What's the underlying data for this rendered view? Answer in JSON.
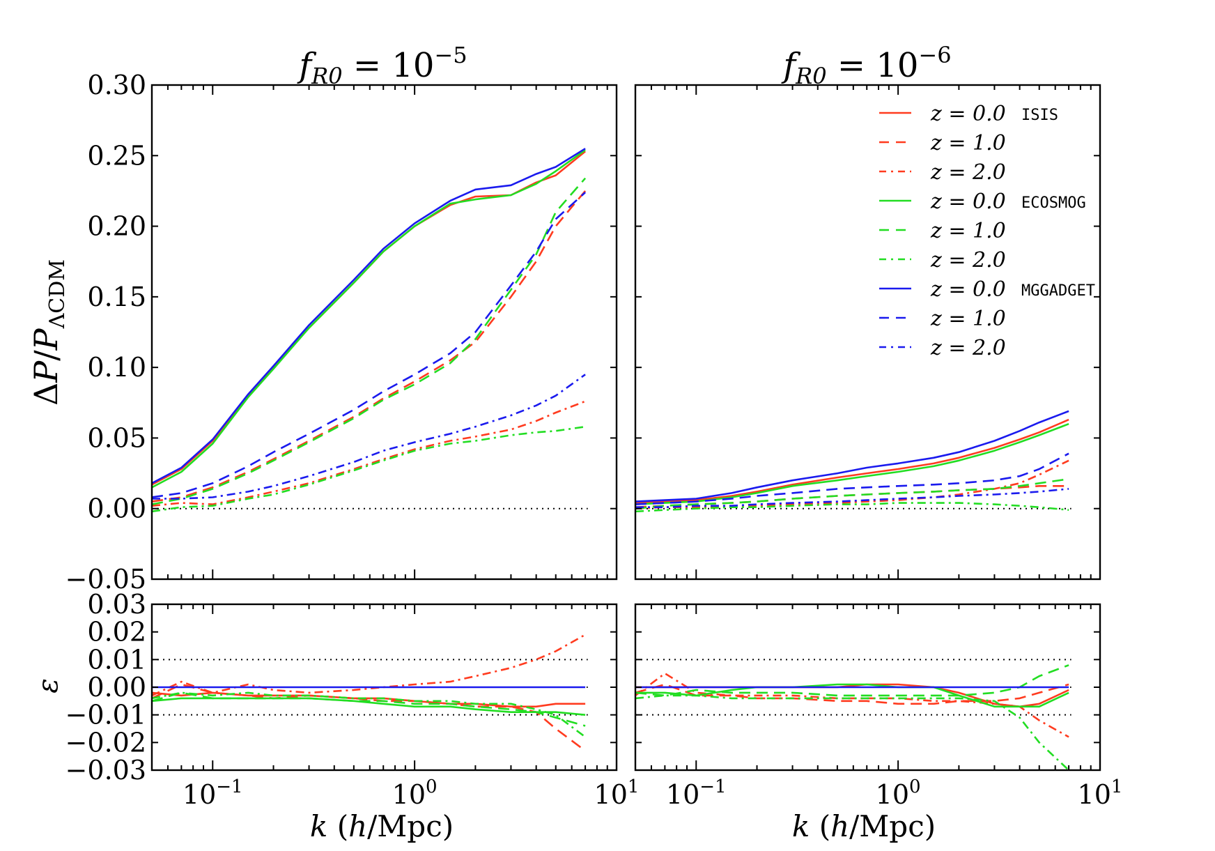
{
  "figure": {
    "ylabel_top": "ΔP/P_ΛCDM",
    "ylabel_bottom": "ε",
    "xlabel": "k   (h/Mpc)"
  },
  "panels": [
    {
      "title": "f_R0 = 10^-5",
      "title_base": "f",
      "title_sub": "R0",
      "title_mid": " = 10",
      "title_sup": "−5"
    },
    {
      "title": "f_R0 = 10^-6",
      "title_base": "f",
      "title_sub": "R0",
      "title_mid": " = 10",
      "title_sup": "−6"
    }
  ],
  "legend": [
    {
      "label": "z = 0.0",
      "code": "ISIS",
      "color": "#ff3b1f",
      "style": "solid"
    },
    {
      "label": "z = 1.0",
      "code": "",
      "color": "#ff3b1f",
      "style": "dashed"
    },
    {
      "label": "z = 2.0",
      "code": "",
      "color": "#ff3b1f",
      "style": "dashdot"
    },
    {
      "label": "z = 0.0",
      "code": "ECOSMOG",
      "color": "#22dd22",
      "style": "solid"
    },
    {
      "label": "z = 1.0",
      "code": "",
      "color": "#22dd22",
      "style": "dashed"
    },
    {
      "label": "z = 2.0",
      "code": "",
      "color": "#22dd22",
      "style": "dashdot"
    },
    {
      "label": "z = 0.0",
      "code": "MGGADGET",
      "color": "#1a1aee",
      "style": "solid"
    },
    {
      "label": "z = 1.0",
      "code": "",
      "color": "#1a1aee",
      "style": "dashed"
    },
    {
      "label": "z = 2.0",
      "code": "",
      "color": "#1a1aee",
      "style": "dashdot"
    }
  ],
  "colors": {
    "isis": "#ff3b1f",
    "ecosmog": "#22dd22",
    "mggadget": "#1a1aee",
    "axes": "#000000"
  },
  "chart_data": {
    "type": "line",
    "xscale": "log",
    "xlim": [
      0.05,
      10
    ],
    "x_ticks": [
      {
        "value": 0.1,
        "base": "10",
        "exp": "−1"
      },
      {
        "value": 1,
        "base": "10",
        "exp": "0"
      },
      {
        "value": 10,
        "base": "10",
        "exp": "1"
      }
    ],
    "main": {
      "ylim": [
        -0.05,
        0.3
      ],
      "yticks": [
        "−0.05",
        "0.00",
        "0.05",
        "0.10",
        "0.15",
        "0.20",
        "0.25",
        "0.30"
      ],
      "ytick_values": [
        -0.05,
        0.0,
        0.05,
        0.1,
        0.15,
        0.2,
        0.25,
        0.3
      ],
      "reference_lines": [
        0.0
      ]
    },
    "ratio": {
      "ylim": [
        -0.03,
        0.03
      ],
      "yticks": [
        "−0.03",
        "−0.02",
        "−0.01",
        "0.00",
        "0.01",
        "0.02",
        "0.03"
      ],
      "ytick_values": [
        -0.03,
        -0.02,
        -0.01,
        0.0,
        0.01,
        0.02,
        0.03
      ],
      "reference_lines": [
        -0.01,
        0.0,
        0.01
      ]
    },
    "k": [
      0.05,
      0.07,
      0.1,
      0.15,
      0.2,
      0.3,
      0.5,
      0.7,
      1.0,
      1.5,
      2.0,
      3.0,
      4.0,
      5.0,
      7.0
    ],
    "panels": [
      {
        "name": "fR0=1e-5",
        "main_series": [
          {
            "code": "ISIS",
            "z": 0.0,
            "style": "solid",
            "color": "#ff3b1f",
            "y": [
              0.017,
              0.028,
              0.048,
              0.08,
              0.1,
              0.128,
              0.16,
              0.182,
              0.2,
              0.215,
              0.221,
              0.222,
              0.231,
              0.236,
              0.253
            ]
          },
          {
            "code": "ISIS",
            "z": 1.0,
            "style": "dashed",
            "color": "#ff3b1f",
            "y": [
              0.005,
              0.008,
              0.015,
              0.026,
              0.035,
              0.048,
              0.065,
              0.078,
              0.09,
              0.105,
              0.118,
              0.15,
              0.175,
              0.2,
              0.225
            ]
          },
          {
            "code": "ISIS",
            "z": 2.0,
            "style": "dashdot",
            "color": "#ff3b1f",
            "y": [
              0.002,
              0.004,
              0.003,
              0.008,
              0.012,
              0.018,
              0.028,
              0.035,
              0.042,
              0.048,
              0.051,
              0.056,
              0.062,
              0.068,
              0.076
            ]
          },
          {
            "code": "ECOSMOG",
            "z": 0.0,
            "style": "solid",
            "color": "#22dd22",
            "y": [
              0.015,
              0.026,
              0.046,
              0.079,
              0.099,
              0.128,
              0.16,
              0.182,
              0.2,
              0.216,
              0.219,
              0.222,
              0.23,
              0.239,
              0.254
            ]
          },
          {
            "code": "ECOSMOG",
            "z": 1.0,
            "style": "dashed",
            "color": "#22dd22",
            "y": [
              0.003,
              0.007,
              0.014,
              0.025,
              0.034,
              0.047,
              0.064,
              0.077,
              0.088,
              0.103,
              0.12,
              0.155,
              0.18,
              0.21,
              0.234
            ]
          },
          {
            "code": "ECOSMOG",
            "z": 2.0,
            "style": "dashdot",
            "color": "#22dd22",
            "y": [
              -0.002,
              0.001,
              0.002,
              0.007,
              0.01,
              0.017,
              0.027,
              0.034,
              0.041,
              0.046,
              0.048,
              0.052,
              0.054,
              0.055,
              0.058
            ]
          },
          {
            "code": "MGGADGET",
            "z": 0.0,
            "style": "solid",
            "color": "#1a1aee",
            "y": [
              0.018,
              0.029,
              0.049,
              0.081,
              0.101,
              0.13,
              0.162,
              0.184,
              0.202,
              0.218,
              0.226,
              0.229,
              0.237,
              0.242,
              0.255
            ]
          },
          {
            "code": "MGGADGET",
            "z": 1.0,
            "style": "dashed",
            "color": "#1a1aee",
            "y": [
              0.008,
              0.011,
              0.018,
              0.03,
              0.04,
              0.053,
              0.07,
              0.083,
              0.095,
              0.11,
              0.125,
              0.158,
              0.182,
              0.205,
              0.224
            ]
          },
          {
            "code": "MGGADGET",
            "z": 2.0,
            "style": "dashdot",
            "color": "#1a1aee",
            "y": [
              0.007,
              0.007,
              0.008,
              0.012,
              0.016,
              0.023,
              0.033,
              0.041,
              0.047,
              0.053,
              0.058,
              0.066,
              0.073,
              0.08,
              0.095
            ]
          }
        ],
        "ratio_series": [
          {
            "code": "ISIS",
            "z": 0.0,
            "style": "solid",
            "color": "#ff3b1f",
            "y": [
              -0.002,
              -0.003,
              -0.002,
              -0.003,
              -0.003,
              -0.003,
              -0.004,
              -0.004,
              -0.005,
              -0.006,
              -0.006,
              -0.007,
              -0.007,
              -0.006,
              -0.006
            ]
          },
          {
            "code": "ISIS",
            "z": 1.0,
            "style": "dashed",
            "color": "#ff3b1f",
            "y": [
              -0.004,
              0.001,
              -0.002,
              -0.003,
              -0.004,
              -0.003,
              -0.004,
              -0.005,
              -0.005,
              -0.006,
              -0.007,
              -0.007,
              -0.009,
              -0.015,
              -0.023
            ]
          },
          {
            "code": "ISIS",
            "z": 2.0,
            "style": "dashdot",
            "color": "#ff3b1f",
            "y": [
              -0.003,
              0.002,
              -0.002,
              0.001,
              -0.001,
              -0.002,
              -0.001,
              0.0,
              0.001,
              0.002,
              0.004,
              0.007,
              0.01,
              0.013,
              0.019
            ]
          },
          {
            "code": "ECOSMOG",
            "z": 0.0,
            "style": "solid",
            "color": "#22dd22",
            "y": [
              -0.005,
              -0.004,
              -0.004,
              -0.004,
              -0.004,
              -0.004,
              -0.005,
              -0.006,
              -0.007,
              -0.007,
              -0.008,
              -0.009,
              -0.009,
              -0.009,
              -0.01
            ]
          },
          {
            "code": "ECOSMOG",
            "z": 1.0,
            "style": "dashed",
            "color": "#22dd22",
            "y": [
              -0.005,
              -0.002,
              -0.004,
              -0.004,
              -0.004,
              -0.004,
              -0.005,
              -0.005,
              -0.006,
              -0.006,
              -0.007,
              -0.008,
              -0.009,
              -0.011,
              -0.014
            ]
          },
          {
            "code": "ECOSMOG",
            "z": 2.0,
            "style": "dashdot",
            "color": "#22dd22",
            "y": [
              -0.004,
              -0.002,
              -0.003,
              -0.002,
              -0.003,
              -0.003,
              -0.004,
              -0.004,
              -0.005,
              -0.005,
              -0.006,
              -0.006,
              -0.008,
              -0.01,
              -0.018
            ]
          },
          {
            "code": "MGGADGET",
            "z": 0.0,
            "style": "solid",
            "color": "#1a1aee",
            "y": [
              0,
              0,
              0,
              0,
              0,
              0,
              0,
              0,
              0,
              0,
              0,
              0,
              0,
              0,
              0
            ]
          }
        ]
      },
      {
        "name": "fR0=1e-6",
        "main_series": [
          {
            "code": "ISIS",
            "z": 0.0,
            "style": "solid",
            "color": "#ff3b1f",
            "y": [
              0.004,
              0.005,
              0.006,
              0.009,
              0.012,
              0.017,
              0.022,
              0.025,
              0.028,
              0.032,
              0.036,
              0.043,
              0.049,
              0.054,
              0.063
            ]
          },
          {
            "code": "ISIS",
            "z": 1.0,
            "style": "dashed",
            "color": "#ff3b1f",
            "y": [
              0.001,
              0.002,
              0.003,
              0.004,
              0.005,
              0.007,
              0.009,
              0.01,
              0.011,
              0.012,
              0.013,
              0.014,
              0.015,
              0.016,
              0.016
            ]
          },
          {
            "code": "ISIS",
            "z": 2.0,
            "style": "dashdot",
            "color": "#ff3b1f",
            "y": [
              0.0,
              0.001,
              0.001,
              0.002,
              0.002,
              0.003,
              0.004,
              0.005,
              0.006,
              0.008,
              0.01,
              0.014,
              0.018,
              0.024,
              0.034
            ]
          },
          {
            "code": "ECOSMOG",
            "z": 0.0,
            "style": "solid",
            "color": "#22dd22",
            "y": [
              0.003,
              0.004,
              0.005,
              0.008,
              0.011,
              0.016,
              0.02,
              0.023,
              0.026,
              0.03,
              0.034,
              0.041,
              0.047,
              0.052,
              0.06
            ]
          },
          {
            "code": "ECOSMOG",
            "z": 1.0,
            "style": "dashed",
            "color": "#22dd22",
            "y": [
              0.0,
              0.002,
              0.003,
              0.004,
              0.005,
              0.007,
              0.009,
              0.01,
              0.011,
              0.012,
              0.013,
              0.014,
              0.016,
              0.018,
              0.021
            ]
          },
          {
            "code": "ECOSMOG",
            "z": 2.0,
            "style": "dashdot",
            "color": "#22dd22",
            "y": [
              -0.002,
              -0.001,
              0.0,
              0.001,
              0.001,
              0.002,
              0.003,
              0.003,
              0.004,
              0.004,
              0.004,
              0.003,
              0.002,
              0.001,
              -0.001
            ]
          },
          {
            "code": "MGGADGET",
            "z": 0.0,
            "style": "solid",
            "color": "#1a1aee",
            "y": [
              0.005,
              0.006,
              0.007,
              0.011,
              0.015,
              0.02,
              0.025,
              0.029,
              0.032,
              0.036,
              0.04,
              0.048,
              0.055,
              0.061,
              0.069
            ]
          },
          {
            "code": "MGGADGET",
            "z": 1.0,
            "style": "dashed",
            "color": "#1a1aee",
            "y": [
              0.003,
              0.004,
              0.005,
              0.007,
              0.009,
              0.011,
              0.014,
              0.015,
              0.016,
              0.017,
              0.018,
              0.02,
              0.023,
              0.028,
              0.039
            ]
          },
          {
            "code": "MGGADGET",
            "z": 2.0,
            "style": "dashdot",
            "color": "#1a1aee",
            "y": [
              0.001,
              0.001,
              0.002,
              0.002,
              0.003,
              0.004,
              0.005,
              0.006,
              0.007,
              0.008,
              0.009,
              0.01,
              0.011,
              0.012,
              0.014
            ]
          }
        ],
        "ratio_series": [
          {
            "code": "ISIS",
            "z": 0.0,
            "style": "solid",
            "color": "#ff3b1f",
            "y": [
              0.0,
              0.0,
              0.0,
              0.0,
              0.0,
              0.0,
              0.0,
              0.001,
              0.001,
              0.0,
              -0.002,
              -0.006,
              -0.007,
              -0.006,
              -0.001
            ]
          },
          {
            "code": "ISIS",
            "z": 1.0,
            "style": "dashed",
            "color": "#ff3b1f",
            "y": [
              -0.002,
              0.001,
              -0.003,
              -0.003,
              -0.004,
              -0.004,
              -0.005,
              -0.005,
              -0.006,
              -0.006,
              -0.005,
              -0.005,
              -0.004,
              -0.002,
              0.001
            ]
          },
          {
            "code": "ISIS",
            "z": 2.0,
            "style": "dashdot",
            "color": "#ff3b1f",
            "y": [
              -0.003,
              0.005,
              -0.002,
              -0.003,
              -0.003,
              -0.003,
              -0.004,
              -0.004,
              -0.004,
              -0.005,
              -0.005,
              -0.006,
              -0.007,
              -0.012,
              -0.018
            ]
          },
          {
            "code": "ECOSMOG",
            "z": 0.0,
            "style": "solid",
            "color": "#22dd22",
            "y": [
              -0.002,
              -0.002,
              -0.003,
              -0.001,
              0.0,
              0.0,
              0.001,
              0.001,
              0.0,
              0.0,
              -0.003,
              -0.007,
              -0.007,
              -0.007,
              -0.002
            ]
          },
          {
            "code": "ECOSMOG",
            "z": 1.0,
            "style": "dashed",
            "color": "#22dd22",
            "y": [
              -0.002,
              -0.003,
              -0.001,
              -0.002,
              -0.002,
              -0.002,
              -0.003,
              -0.003,
              -0.003,
              -0.003,
              -0.003,
              -0.002,
              0.0,
              0.004,
              0.008
            ]
          },
          {
            "code": "ECOSMOG",
            "z": 2.0,
            "style": "dashdot",
            "color": "#22dd22",
            "y": [
              -0.004,
              -0.003,
              -0.003,
              -0.004,
              -0.004,
              -0.004,
              -0.004,
              -0.004,
              -0.004,
              -0.004,
              -0.004,
              -0.005,
              -0.011,
              -0.02,
              -0.03
            ]
          },
          {
            "code": "MGGADGET",
            "z": 0.0,
            "style": "solid",
            "color": "#1a1aee",
            "y": [
              0,
              0,
              0,
              0,
              0,
              0,
              0,
              0,
              0,
              0,
              0,
              0,
              0,
              0,
              0
            ]
          }
        ]
      }
    ]
  }
}
